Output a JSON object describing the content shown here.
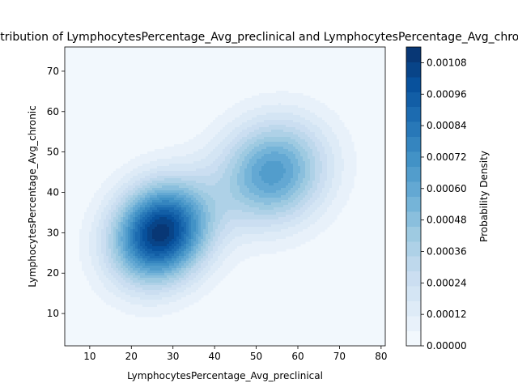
{
  "chart_data": {
    "type": "heatmap",
    "subtype": "2d kernel density estimate (filled contours)",
    "title": "Distribution of LymphocytesPercentage_Avg_preclinical and LymphocytesPercentage_Avg_chronic",
    "xlabel": "LymphocytesPercentage_Avg_preclinical",
    "ylabel": "LymphocytesPercentage_Avg_chronic",
    "xlim": [
      4,
      81
    ],
    "ylim": [
      2,
      76
    ],
    "x_ticks": [
      10,
      20,
      30,
      40,
      50,
      60,
      70,
      80
    ],
    "y_ticks": [
      10,
      20,
      30,
      40,
      50,
      60,
      70
    ],
    "colormap": "Blues",
    "colorbar": {
      "label": "Probability Density",
      "range": [
        0,
        0.00114
      ],
      "levels": 20,
      "tick_values": [
        0,
        0.00012,
        0.00024,
        0.00036,
        0.00048,
        0.0006,
        0.00072,
        0.00084,
        0.00096,
        0.00108
      ],
      "tick_labels": [
        "0.00000",
        "0.00012",
        "0.00024",
        "0.00036",
        "0.00048",
        "0.00060",
        "0.00072",
        "0.00084",
        "0.00096",
        "0.00108"
      ]
    },
    "density_components": [
      {
        "mean": [
          27,
          30
        ],
        "sd": [
          8,
          8.5
        ],
        "rho": 0.15,
        "peak_density": 0.00112
      },
      {
        "mean": [
          54,
          45
        ],
        "sd": [
          9,
          9
        ],
        "rho": 0.1,
        "peak_density": 0.00066
      }
    ]
  }
}
